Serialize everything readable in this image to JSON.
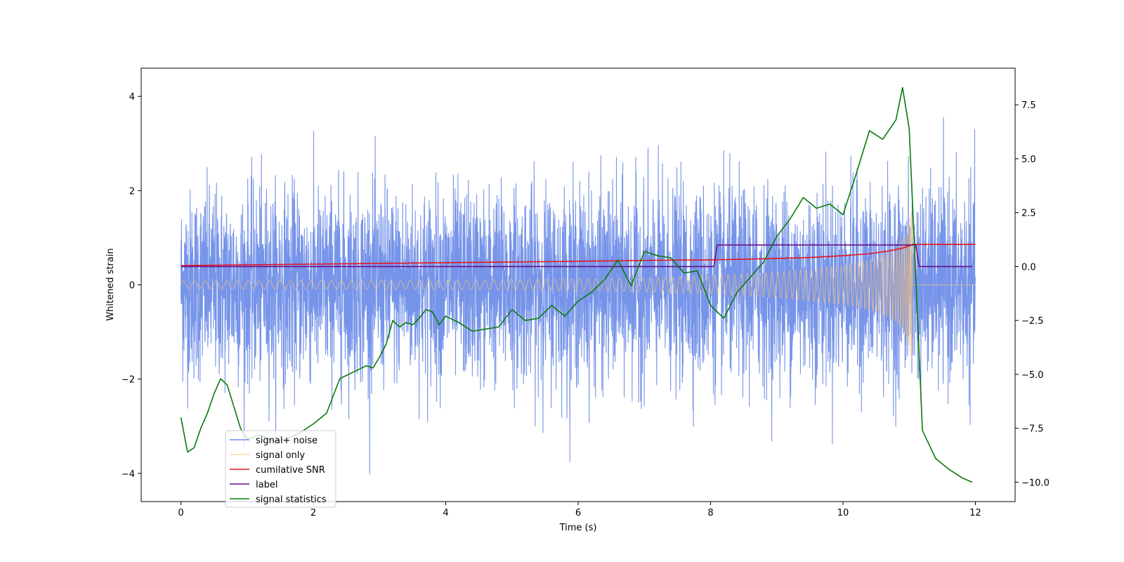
{
  "chart_data": {
    "type": "line",
    "xlabel": "Time (s)",
    "ylabel_left": "Whitened strain",
    "ylabel_right": "",
    "xlim": [
      -0.6,
      12.6
    ],
    "ylim_left": [
      -4.6,
      4.6
    ],
    "ylim_right": [
      -10.9,
      9.2
    ],
    "xticks": [
      0,
      2,
      4,
      6,
      8,
      10,
      12
    ],
    "xtick_labels": [
      "0",
      "2",
      "4",
      "6",
      "8",
      "10",
      "12"
    ],
    "yticks_left": [
      -4,
      -2,
      0,
      2,
      4
    ],
    "ytick_labels_left": [
      "−4",
      "−2",
      "0",
      "2",
      "4"
    ],
    "yticks_right": [
      -10,
      -7.5,
      -5,
      -2.5,
      0,
      2.5,
      5,
      7.5
    ],
    "ytick_labels_right": [
      "−10.0",
      "−7.5",
      "−5.0",
      "−2.5",
      "0.0",
      "2.5",
      "5.0",
      "7.5"
    ],
    "grid": false,
    "legend_placement": "lower-left",
    "series": [
      {
        "name": "signal+ noise",
        "axis": "left",
        "color": "#6f8ee8",
        "kind": "noise-band",
        "x_range": [
          0,
          12
        ],
        "typical_amplitude": 1.0,
        "peak_max": 4.15,
        "peak_min": -4.1
      },
      {
        "name": "signal only",
        "axis": "left",
        "color": "#f6c27e",
        "kind": "chirp-envelope",
        "x_range": [
          0,
          11.05
        ],
        "envelope": {
          "x": [
            0,
            2,
            4,
            6,
            7,
            8,
            9,
            10,
            10.5,
            10.8,
            10.95,
            11.02,
            11.05
          ],
          "y": [
            0.08,
            0.09,
            0.1,
            0.13,
            0.15,
            0.2,
            0.27,
            0.42,
            0.58,
            0.8,
            1.1,
            1.5,
            1.8
          ]
        },
        "after_merger_value": 0.0,
        "after_merger_x_range": [
          11.05,
          12
        ]
      },
      {
        "name": "cumilative SNR",
        "axis": "left",
        "color": "#e8141b",
        "x": [
          0,
          2,
          4,
          6,
          7,
          8,
          9,
          9.5,
          10,
          10.4,
          10.7,
          10.9,
          11.0,
          11.05,
          12
        ],
        "y": [
          0.41,
          0.44,
          0.47,
          0.5,
          0.52,
          0.53,
          0.56,
          0.58,
          0.62,
          0.66,
          0.72,
          0.78,
          0.83,
          0.86,
          0.86
        ]
      },
      {
        "name": "label",
        "axis": "right",
        "color": "#6e0b8a",
        "x": [
          0,
          8.05,
          8.1,
          11.1,
          11.15,
          11.95
        ],
        "y": [
          0,
          0,
          1,
          1,
          0,
          0
        ]
      },
      {
        "name": "signal statistics",
        "axis": "right",
        "color": "#0a7a0a",
        "x": [
          0,
          0.1,
          0.2,
          0.3,
          0.4,
          0.5,
          0.6,
          0.7,
          0.8,
          0.9,
          1.0,
          1.2,
          1.4,
          1.6,
          1.8,
          2.0,
          2.2,
          2.4,
          2.6,
          2.8,
          2.9,
          3.0,
          3.1,
          3.2,
          3.3,
          3.4,
          3.5,
          3.6,
          3.7,
          3.8,
          3.9,
          4.0,
          4.2,
          4.4,
          4.6,
          4.8,
          5.0,
          5.2,
          5.4,
          5.6,
          5.8,
          6.0,
          6.2,
          6.4,
          6.6,
          6.8,
          7.0,
          7.2,
          7.4,
          7.6,
          7.8,
          8.0,
          8.2,
          8.4,
          8.6,
          8.8,
          9.0,
          9.2,
          9.4,
          9.6,
          9.8,
          10.0,
          10.2,
          10.4,
          10.6,
          10.8,
          10.9,
          11.0,
          11.1,
          11.2,
          11.4,
          11.6,
          11.8,
          11.95
        ],
        "y": [
          -7.0,
          -8.6,
          -8.4,
          -7.5,
          -6.8,
          -5.9,
          -5.2,
          -5.5,
          -6.5,
          -7.5,
          -8.0,
          -7.8,
          -8.1,
          -8.0,
          -7.7,
          -7.3,
          -6.8,
          -5.2,
          -4.9,
          -4.6,
          -4.7,
          -4.2,
          -3.6,
          -2.5,
          -2.8,
          -2.6,
          -2.7,
          -2.4,
          -2.0,
          -2.1,
          -2.7,
          -2.3,
          -2.6,
          -3.0,
          -2.9,
          -2.8,
          -2.0,
          -2.5,
          -2.4,
          -1.8,
          -2.3,
          -1.6,
          -1.2,
          -0.6,
          0.3,
          -0.9,
          0.7,
          0.5,
          0.4,
          -0.3,
          -0.2,
          -1.8,
          -2.4,
          -1.2,
          -0.5,
          0.2,
          1.4,
          2.2,
          3.2,
          2.7,
          2.9,
          2.4,
          4.3,
          6.3,
          5.9,
          6.8,
          8.3,
          6.4,
          -0.5,
          -7.6,
          -8.9,
          -9.4,
          -9.8,
          -10.0
        ]
      }
    ]
  }
}
